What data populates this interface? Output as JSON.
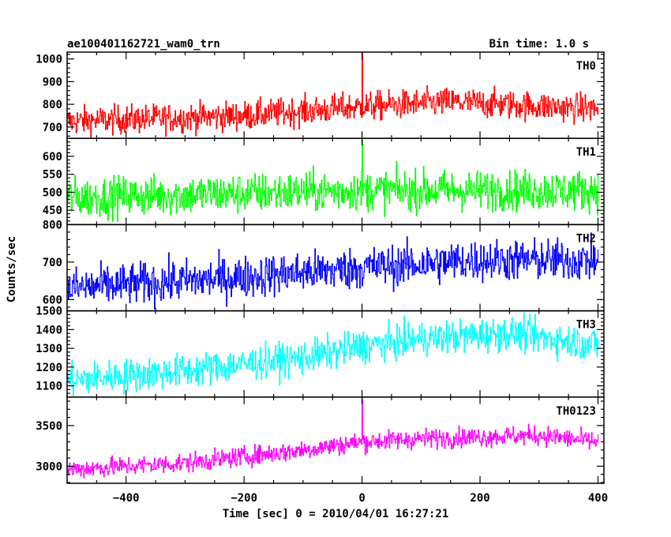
{
  "header": {
    "left": "ae100401162721_wam0_trn",
    "right": "Bin time: 1.0 s"
  },
  "chart_data": {
    "type": "line",
    "xlabel": "Time [sec] 0 = 2010/04/01 16:27:21",
    "ylabel": "Counts/sec",
    "xlim": [
      -500,
      410
    ],
    "x_ticks": [
      -400,
      -200,
      0,
      200,
      400
    ],
    "x_tick_labels": [
      "−400",
      "−200",
      "0",
      "200",
      "400"
    ],
    "x_range": [
      -500,
      400
    ],
    "grid": false,
    "panels": [
      {
        "name": "TH0",
        "color": "#ff0000",
        "ylim": [
          650,
          1030
        ],
        "yticks": [
          700,
          800,
          900,
          1000
        ],
        "trend": [
          {
            "x": -500,
            "y": 725
          },
          {
            "x": -200,
            "y": 750
          },
          {
            "x": 0,
            "y": 790
          },
          {
            "x": 150,
            "y": 810
          },
          {
            "x": 400,
            "y": 780
          }
        ],
        "noise": 32,
        "spike": {
          "x": 0,
          "y": 1030
        }
      },
      {
        "name": "TH1",
        "color": "#00ff00",
        "ylim": [
          410,
          650
        ],
        "yticks": [
          450,
          500,
          550,
          600
        ],
        "trend": [
          {
            "x": -500,
            "y": 485
          },
          {
            "x": 0,
            "y": 505
          },
          {
            "x": 400,
            "y": 505
          }
        ],
        "noise": 28,
        "spike": {
          "x": 0,
          "y": 645
        }
      },
      {
        "name": "TH2",
        "color": "#0000ff",
        "ylim": [
          570,
          800
        ],
        "yticks": [
          600,
          700,
          800
        ],
        "trend": [
          {
            "x": -500,
            "y": 630
          },
          {
            "x": -200,
            "y": 660
          },
          {
            "x": 0,
            "y": 685
          },
          {
            "x": 200,
            "y": 705
          },
          {
            "x": 400,
            "y": 705
          }
        ],
        "noise": 28,
        "spike": null
      },
      {
        "name": "TH3",
        "color": "#00ffff",
        "ylim": [
          1040,
          1500
        ],
        "yticks": [
          1100,
          1200,
          1300,
          1400,
          1500
        ],
        "trend": [
          {
            "x": -500,
            "y": 1130
          },
          {
            "x": -300,
            "y": 1180
          },
          {
            "x": -100,
            "y": 1250
          },
          {
            "x": 0,
            "y": 1310
          },
          {
            "x": 100,
            "y": 1350
          },
          {
            "x": 250,
            "y": 1380
          },
          {
            "x": 400,
            "y": 1320
          }
        ],
        "noise": 45,
        "spike": null
      },
      {
        "name": "TH0123",
        "color": "#ff00ff",
        "ylim": [
          2790,
          3850
        ],
        "yticks": [
          3000,
          3500
        ],
        "trend": [
          {
            "x": -500,
            "y": 2960
          },
          {
            "x": -300,
            "y": 3040
          },
          {
            "x": -100,
            "y": 3200
          },
          {
            "x": 0,
            "y": 3300
          },
          {
            "x": 100,
            "y": 3340
          },
          {
            "x": 300,
            "y": 3380
          },
          {
            "x": 400,
            "y": 3300
          }
        ],
        "noise": 60,
        "spike": {
          "x": 0,
          "y": 3820
        }
      }
    ]
  }
}
